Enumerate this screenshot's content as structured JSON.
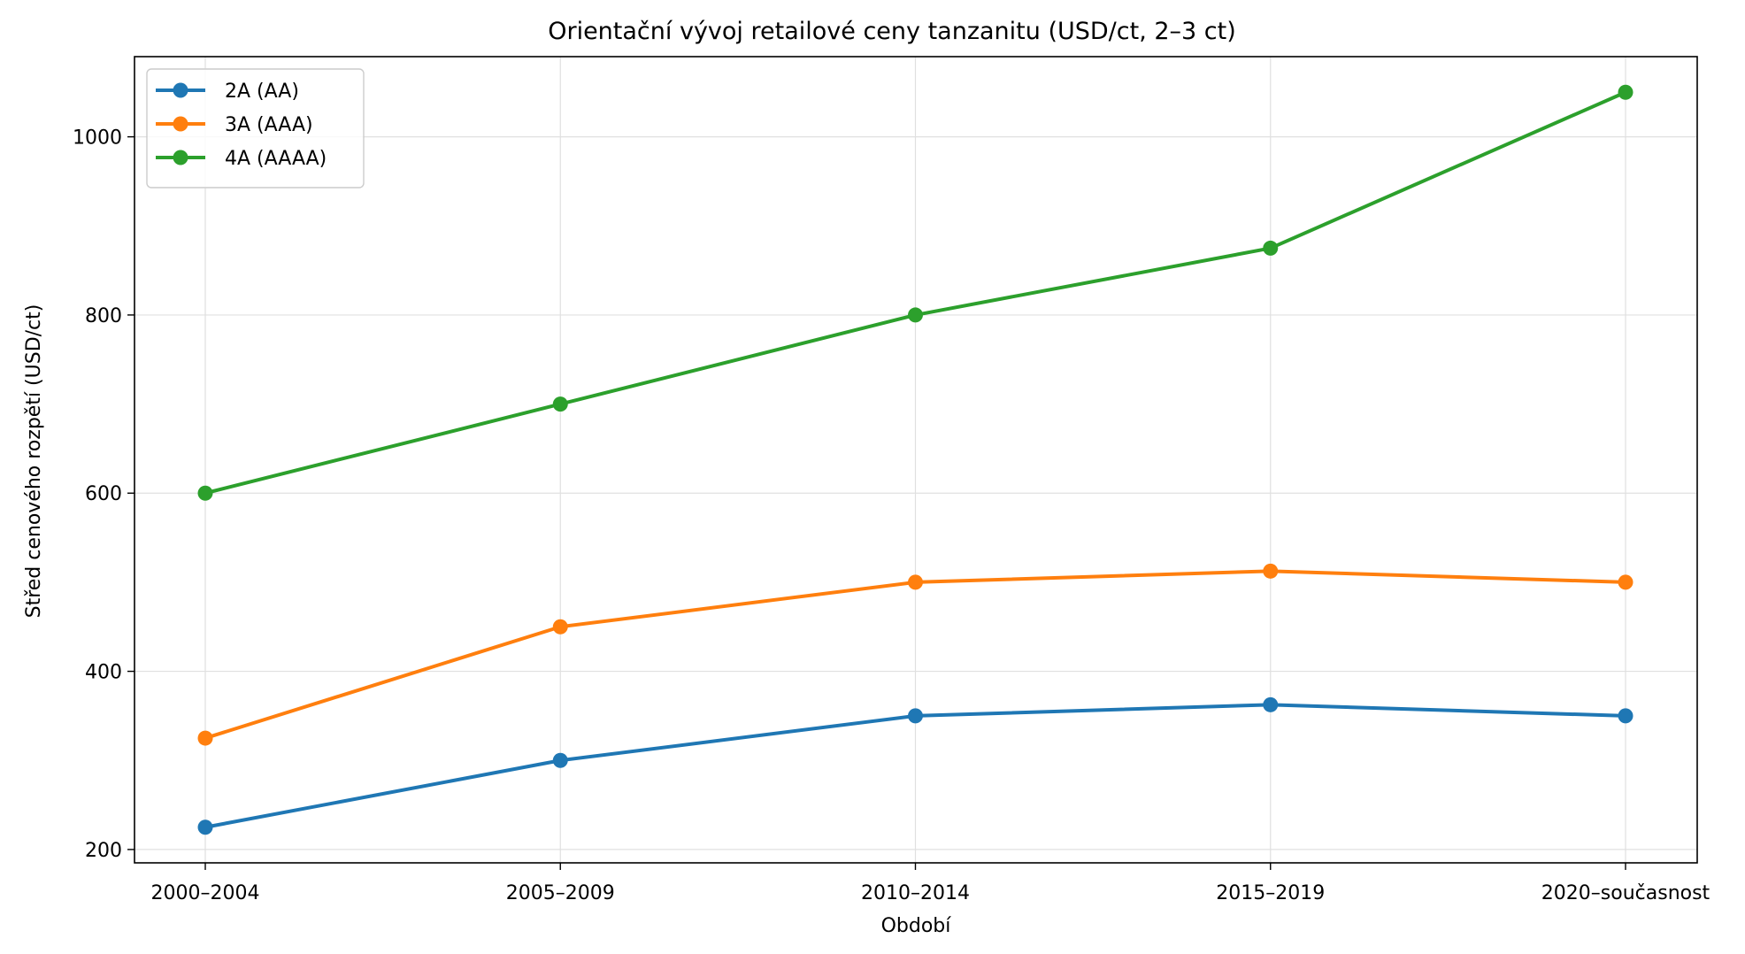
{
  "chart_data": {
    "type": "line",
    "title": "Orientační vývoj retailové ceny tanzanitu (USD/ct, 2–3 ct)",
    "xlabel": "Období",
    "ylabel": "Střed cenového rozpětí (USD/ct)",
    "categories": [
      "2000–2004",
      "2005–2009",
      "2010–2014",
      "2015–2019",
      "2020–současnost"
    ],
    "ylim": [
      185,
      1090
    ],
    "yticks": [
      200,
      400,
      600,
      800,
      1000
    ],
    "grid": true,
    "legend_position": "top-left",
    "series": [
      {
        "name": "2A (AA)",
        "color": "#1f77b4",
        "values": [
          225,
          300,
          350,
          362.5,
          350
        ]
      },
      {
        "name": "3A (AAA)",
        "color": "#ff7f0e",
        "values": [
          325,
          450,
          500,
          512.5,
          500
        ]
      },
      {
        "name": "4A (AAAA)",
        "color": "#2ca02c",
        "values": [
          600,
          700,
          800,
          875,
          1050
        ]
      }
    ]
  }
}
